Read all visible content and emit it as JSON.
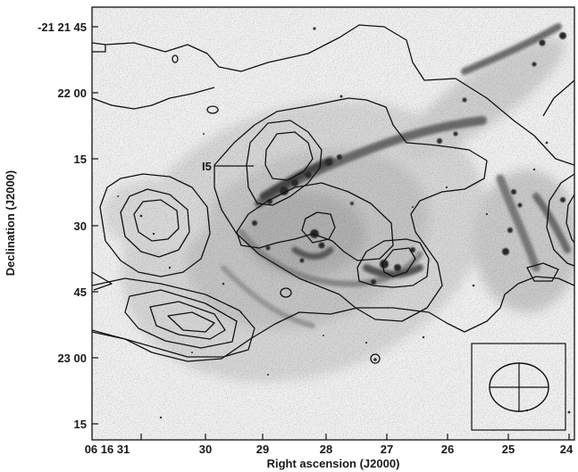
{
  "figure": {
    "annotation": "I5",
    "xaxis": {
      "label": "Right ascension (J2000)",
      "ticks": [
        "06 16 31",
        "30",
        "29",
        "28",
        "27",
        "26",
        "25",
        "24"
      ]
    },
    "yaxis": {
      "label": "Declination (J2000)",
      "ticks": [
        "-21 21 45",
        "22 00",
        "15",
        "30",
        "45",
        "23 00",
        "15"
      ]
    },
    "background": "greyscale optical image of a spiral galaxy",
    "overlay": "contour lines",
    "inset": "beam ellipse",
    "colors": {
      "ink": "#1a1a1a",
      "background_light": "#eeeeee",
      "galaxy_dark": "#3a3a3a"
    }
  }
}
